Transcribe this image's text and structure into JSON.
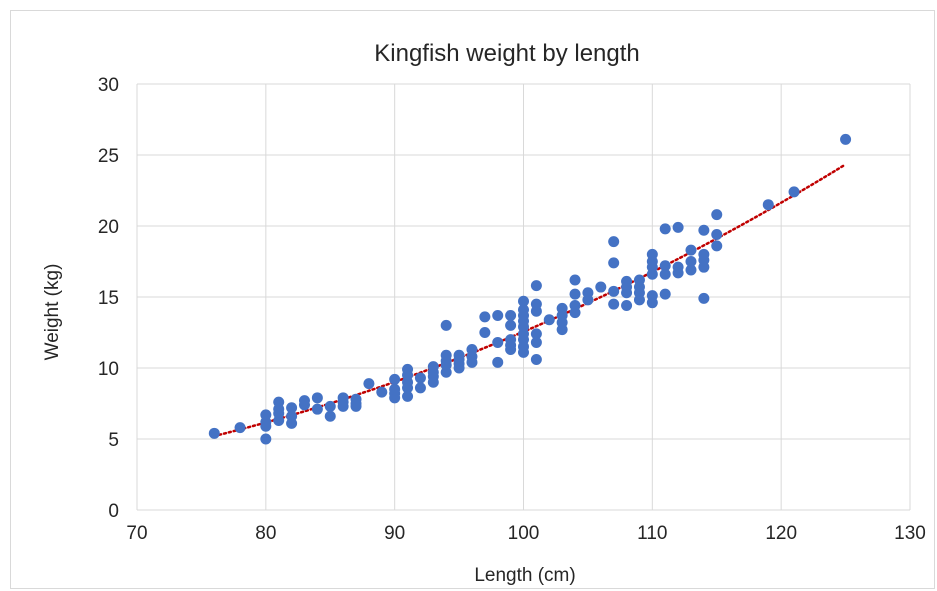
{
  "chart_data": {
    "type": "scatter",
    "title": "Kingfish weight by length",
    "xlabel": "Length (cm)",
    "ylabel": "Weight (kg)",
    "xlim": [
      70,
      130
    ],
    "ylim": [
      0,
      30
    ],
    "xticks": [
      "70",
      "80",
      "90",
      "100",
      "110",
      "120",
      "130"
    ],
    "yticks": [
      "0",
      "5",
      "10",
      "15",
      "20",
      "25",
      "30"
    ],
    "grid": true,
    "legend": "none",
    "colors": {
      "points": "#4472c4",
      "trendline": "#c00000",
      "grid": "#d9d9d9",
      "text": "#262626"
    },
    "trendline": {
      "type": "polynomial",
      "style": "dotted",
      "x_start": 76,
      "x_end": 125
    },
    "points": [
      [
        76,
        5.4
      ],
      [
        78,
        5.8
      ],
      [
        80,
        5.0
      ],
      [
        80,
        5.9
      ],
      [
        80,
        6.2
      ],
      [
        80,
        6.7
      ],
      [
        81,
        6.3
      ],
      [
        81,
        6.8
      ],
      [
        81,
        7.1
      ],
      [
        81,
        7.6
      ],
      [
        82,
        6.1
      ],
      [
        82,
        6.6
      ],
      [
        82,
        7.2
      ],
      [
        83,
        7.4
      ],
      [
        83,
        7.7
      ],
      [
        84,
        7.1
      ],
      [
        84,
        7.9
      ],
      [
        85,
        6.6
      ],
      [
        85,
        7.3
      ],
      [
        86,
        7.3
      ],
      [
        86,
        7.6
      ],
      [
        86,
        7.9
      ],
      [
        87,
        7.3
      ],
      [
        87,
        7.5
      ],
      [
        87,
        7.8
      ],
      [
        88,
        8.9
      ],
      [
        89,
        8.3
      ],
      [
        90,
        7.9
      ],
      [
        90,
        8.2
      ],
      [
        90,
        8.5
      ],
      [
        90,
        9.2
      ],
      [
        91,
        8.0
      ],
      [
        91,
        8.6
      ],
      [
        91,
        9.0
      ],
      [
        91,
        9.5
      ],
      [
        91,
        9.9
      ],
      [
        92,
        8.6
      ],
      [
        92,
        9.3
      ],
      [
        93,
        9.0
      ],
      [
        93,
        9.4
      ],
      [
        93,
        9.7
      ],
      [
        93,
        10.1
      ],
      [
        94,
        9.7
      ],
      [
        94,
        10.2
      ],
      [
        94,
        10.5
      ],
      [
        94,
        10.9
      ],
      [
        94,
        13.0
      ],
      [
        95,
        10.0
      ],
      [
        95,
        10.3
      ],
      [
        95,
        10.6
      ],
      [
        95,
        10.9
      ],
      [
        96,
        10.4
      ],
      [
        96,
        10.8
      ],
      [
        96,
        11.3
      ],
      [
        97,
        12.5
      ],
      [
        97,
        13.6
      ],
      [
        98,
        10.4
      ],
      [
        98,
        11.8
      ],
      [
        98,
        13.7
      ],
      [
        99,
        11.3
      ],
      [
        99,
        11.6
      ],
      [
        99,
        12.0
      ],
      [
        99,
        13.0
      ],
      [
        99,
        13.7
      ],
      [
        100,
        11.1
      ],
      [
        100,
        11.5
      ],
      [
        100,
        12.0
      ],
      [
        100,
        12.4
      ],
      [
        100,
        12.9
      ],
      [
        100,
        13.3
      ],
      [
        100,
        13.7
      ],
      [
        100,
        14.1
      ],
      [
        100,
        14.7
      ],
      [
        101,
        10.6
      ],
      [
        101,
        11.8
      ],
      [
        101,
        12.4
      ],
      [
        101,
        14.0
      ],
      [
        101,
        14.5
      ],
      [
        101,
        15.8
      ],
      [
        102,
        13.4
      ],
      [
        103,
        12.7
      ],
      [
        103,
        13.2
      ],
      [
        103,
        13.7
      ],
      [
        103,
        14.2
      ],
      [
        104,
        13.9
      ],
      [
        104,
        14.4
      ],
      [
        104,
        15.2
      ],
      [
        104,
        16.2
      ],
      [
        105,
        14.8
      ],
      [
        105,
        15.3
      ],
      [
        106,
        15.7
      ],
      [
        107,
        14.5
      ],
      [
        107,
        15.4
      ],
      [
        107,
        17.4
      ],
      [
        107,
        18.9
      ],
      [
        108,
        14.4
      ],
      [
        108,
        15.3
      ],
      [
        108,
        15.7
      ],
      [
        108,
        16.1
      ],
      [
        109,
        14.8
      ],
      [
        109,
        15.3
      ],
      [
        109,
        15.7
      ],
      [
        109,
        16.2
      ],
      [
        110,
        14.6
      ],
      [
        110,
        15.1
      ],
      [
        110,
        16.6
      ],
      [
        110,
        17.1
      ],
      [
        110,
        17.5
      ],
      [
        110,
        18.0
      ],
      [
        111,
        15.2
      ],
      [
        111,
        16.6
      ],
      [
        111,
        17.2
      ],
      [
        111,
        19.8
      ],
      [
        112,
        16.7
      ],
      [
        112,
        17.1
      ],
      [
        112,
        19.9
      ],
      [
        113,
        16.9
      ],
      [
        113,
        17.5
      ],
      [
        113,
        18.3
      ],
      [
        114,
        14.9
      ],
      [
        114,
        17.1
      ],
      [
        114,
        17.6
      ],
      [
        114,
        18.0
      ],
      [
        114,
        19.7
      ],
      [
        115,
        18.6
      ],
      [
        115,
        19.4
      ],
      [
        115,
        20.8
      ],
      [
        119,
        21.5
      ],
      [
        121,
        22.4
      ],
      [
        125,
        26.1
      ]
    ]
  }
}
